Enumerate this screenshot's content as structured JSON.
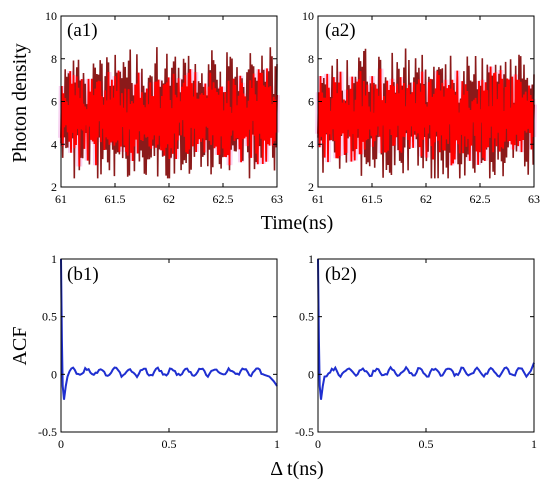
{
  "chart_data": [
    {
      "type": "line",
      "panel_label": "(a1)",
      "ylabel": "Photon density",
      "xlim": [
        61,
        63
      ],
      "ylim": [
        2,
        10
      ],
      "xticks": [
        "61",
        "61.5",
        "62",
        "62.5",
        "63"
      ],
      "yticks": [
        "2",
        "4",
        "6",
        "8",
        "10"
      ],
      "series": [
        {
          "color": "#8b1a1a",
          "values_summary": "dense oscillation, range 2.5-9, mean ~5"
        },
        {
          "color": "#ff0000",
          "values_summary": "dense oscillation overlaid, range 3-8.5, mean ~5"
        }
      ]
    },
    {
      "type": "line",
      "panel_label": "(a2)",
      "xlim": [
        61,
        63
      ],
      "ylim": [
        2,
        10
      ],
      "xticks": [
        "61",
        "61.5",
        "62",
        "62.5",
        "63"
      ],
      "yticks": [
        "2",
        "4",
        "6",
        "8",
        "10"
      ],
      "series": [
        {
          "color": "#8b1a1a",
          "values_summary": "dense oscillation, range 2.5-8.5, mean ~5.5"
        },
        {
          "color": "#ff0000",
          "values_summary": "dense oscillation overlaid, range 3-8, mean ~5.5"
        }
      ]
    },
    {
      "type": "line",
      "panel_label": "(b1)",
      "ylabel": "ACF",
      "xlim": [
        0,
        1
      ],
      "ylim": [
        -0.5,
        1
      ],
      "xticks": [
        "0",
        "0.5",
        "1"
      ],
      "yticks": [
        "-0.5",
        "0",
        "0.5",
        "1"
      ],
      "series": [
        {
          "color": "#1f2fd0",
          "values_summary": "1 at 0, dip to -0.22 near 0.01, then ~0 +/-0.05, small dip to -0.1 at 1"
        }
      ]
    },
    {
      "type": "line",
      "panel_label": "(b2)",
      "xlim": [
        0,
        1
      ],
      "ylim": [
        -0.5,
        1
      ],
      "xticks": [
        "0",
        "0.5",
        "1"
      ],
      "yticks": [
        "-0.5",
        "0",
        "0.5",
        "1"
      ],
      "series": [
        {
          "color": "#1f2fd0",
          "values_summary": "1 at 0, dip to -0.2 near 0.01, then ~0 +/-0.05, rises to 0.1 at 1"
        }
      ]
    }
  ],
  "labels": {
    "photon_density": "Photon density",
    "time": "Time(ns)",
    "acf": "ACF",
    "delta_t": "Δ t(ns)",
    "a1": "(a1)",
    "a2": "(a2)",
    "b1": "(b1)",
    "b2": "(b2)"
  },
  "colors": {
    "dark_red": "#8b1a1a",
    "red": "#ff0000",
    "blue": "#1f2fd0",
    "pink_halo": "#f4b6e8"
  }
}
